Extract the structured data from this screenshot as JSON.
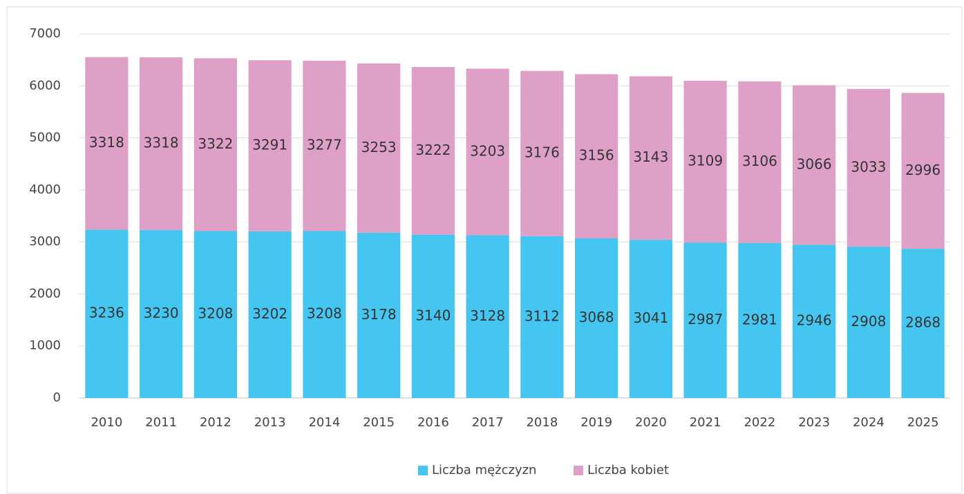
{
  "chart_data": {
    "type": "bar",
    "stacked": true,
    "categories": [
      "2010",
      "2011",
      "2012",
      "2013",
      "2014",
      "2015",
      "2016",
      "2017",
      "2018",
      "2019",
      "2020",
      "2021",
      "2022",
      "2023",
      "2024",
      "2025"
    ],
    "series": [
      {
        "name": "Liczba mężczyzn",
        "color": "#45c6f0",
        "values": [
          3236,
          3230,
          3208,
          3202,
          3208,
          3178,
          3140,
          3128,
          3112,
          3068,
          3041,
          2987,
          2981,
          2946,
          2908,
          2868
        ]
      },
      {
        "name": "Liczba kobiet",
        "color": "#dfa0c8",
        "values": [
          3318,
          3318,
          3322,
          3291,
          3277,
          3253,
          3222,
          3203,
          3176,
          3156,
          3143,
          3109,
          3106,
          3066,
          3033,
          2996
        ]
      }
    ],
    "ylim": [
      0,
      7000
    ],
    "yticks": [
      0,
      1000,
      2000,
      3000,
      4000,
      5000,
      6000,
      7000
    ],
    "grid": true,
    "legend": "bottom"
  }
}
